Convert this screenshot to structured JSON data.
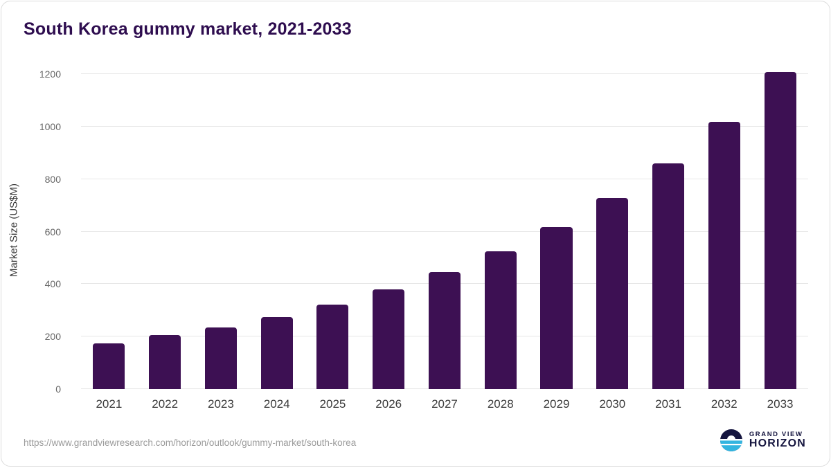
{
  "title": "South Korea gummy market, 2021-2033",
  "footer": {
    "source_url": "https://www.grandviewresearch.com/horizon/outlook/gummy-market/south-korea",
    "brand_top": "GRAND VIEW",
    "brand_bottom": "HORIZON"
  },
  "colors": {
    "bar": "#3d1053",
    "title": "#2e0d4f",
    "grid": "#e7e7e7",
    "y_tick_text": "#666666",
    "x_tick_text": "#3c3c3c",
    "footer_text": "#9b9b9b",
    "logo_navy": "#15153f",
    "logo_cyan": "#33b5e0"
  },
  "chart_data": {
    "type": "bar",
    "title": "South Korea gummy market, 2021-2033",
    "xlabel": "",
    "ylabel": "Market Size (US$M)",
    "categories": [
      "2021",
      "2022",
      "2023",
      "2024",
      "2025",
      "2026",
      "2027",
      "2028",
      "2029",
      "2030",
      "2031",
      "2032",
      "2033"
    ],
    "values": [
      175,
      205,
      236,
      275,
      322,
      380,
      445,
      524,
      618,
      729,
      860,
      1018,
      1208
    ],
    "ylim": [
      0,
      1200
    ],
    "yticks": [
      0,
      200,
      400,
      600,
      800,
      1000,
      1200
    ],
    "grid": "horizontal",
    "legend": "none",
    "bar_color": "#3d1053"
  }
}
